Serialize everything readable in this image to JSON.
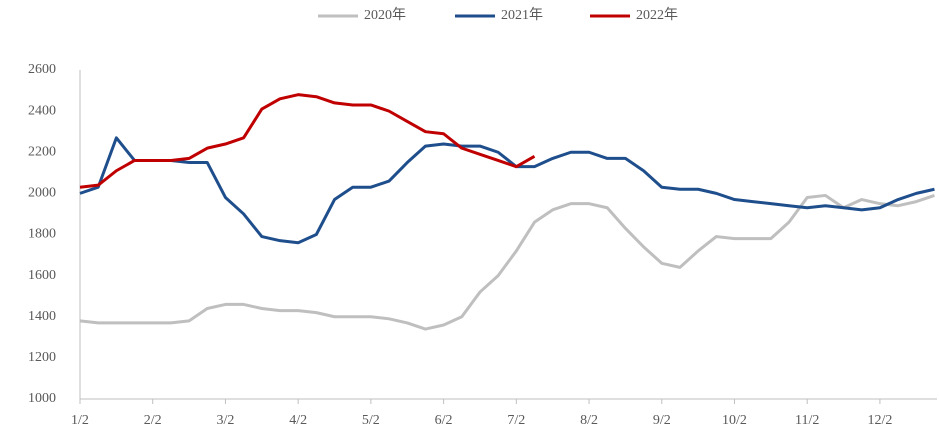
{
  "chart_data": {
    "type": "line",
    "categories": [
      "1/2",
      null,
      null,
      null,
      "2/2",
      null,
      null,
      null,
      "3/2",
      null,
      null,
      null,
      "4/2",
      null,
      null,
      null,
      "5/2",
      null,
      null,
      null,
      "6/2",
      null,
      null,
      null,
      "7/2",
      null,
      null,
      null,
      "8/2",
      null,
      null,
      null,
      "9/2",
      null,
      null,
      null,
      "10/2",
      null,
      null,
      null,
      "11/2",
      null,
      null,
      null,
      "12/2",
      null,
      null,
      null
    ],
    "series": [
      {
        "name": "2020年",
        "color": "#bfbfbf",
        "values": [
          1380,
          1370,
          1370,
          1370,
          1370,
          1370,
          1380,
          1440,
          1460,
          1460,
          1440,
          1430,
          1430,
          1420,
          1400,
          1400,
          1400,
          1390,
          1370,
          1340,
          1360,
          1400,
          1520,
          1600,
          1720,
          1860,
          1920,
          1950,
          1950,
          1930,
          1830,
          1740,
          1660,
          1640,
          1720,
          1790,
          1780,
          1780,
          1780,
          1860,
          1980,
          1990,
          1930,
          1970,
          1950,
          1940,
          1960,
          1990
        ]
      },
      {
        "name": "2021年",
        "color": "#1f4e8c",
        "values": [
          2000,
          2030,
          2270,
          2160,
          2160,
          2160,
          2150,
          2150,
          1980,
          1900,
          1790,
          1770,
          1760,
          1800,
          1970,
          2030,
          2030,
          2060,
          2150,
          2230,
          2240,
          2230,
          2230,
          2200,
          2130,
          2130,
          2170,
          2200,
          2200,
          2170,
          2170,
          2110,
          2030,
          2020,
          2020,
          2000,
          1970,
          1960,
          1950,
          1940,
          1930,
          1940,
          1930,
          1920,
          1930,
          1970,
          2000,
          2020
        ]
      },
      {
        "name": "2022年",
        "color": "#c00000",
        "values": [
          2030,
          2040,
          2110,
          2160,
          2160,
          2160,
          2170,
          2220,
          2240,
          2270,
          2410,
          2460,
          2480,
          2470,
          2440,
          2430,
          2430,
          2400,
          2350,
          2300,
          2290,
          2220,
          2190,
          2160,
          2130,
          2180,
          null,
          null,
          null,
          null,
          null,
          null,
          null,
          null,
          null,
          null,
          null,
          null,
          null,
          null,
          null,
          null,
          null,
          null,
          null,
          null,
          null,
          null
        ]
      }
    ],
    "ylim": [
      1000,
      2600
    ],
    "yticks": [
      1000,
      1200,
      1400,
      1600,
      1800,
      2000,
      2200,
      2400,
      2600
    ],
    "grid": false,
    "legend": "top"
  }
}
